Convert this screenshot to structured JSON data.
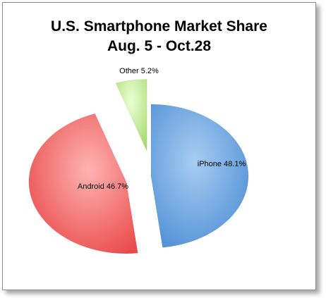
{
  "chart_data": {
    "type": "pie",
    "title": "U.S. Smartphone Market Share",
    "subtitle": "Aug. 5 - Oct.28",
    "slices": [
      {
        "label": "iPhone 48.1%",
        "name": "iPhone",
        "value": 48.1,
        "color": "#5b9bd5",
        "exploded": false
      },
      {
        "label": "Android 46.7%",
        "name": "Android",
        "value": 46.7,
        "color": "#e8504d",
        "exploded": true
      },
      {
        "label": "Other 5.2%",
        "name": "Other",
        "value": 5.2,
        "color": "#a9d96c",
        "exploded": true
      }
    ],
    "start_angle_deg": 0,
    "direction": "clockwise",
    "legend": "none"
  },
  "colors": {
    "frame_border": "#8c8c8c",
    "background": "#ffffff"
  }
}
